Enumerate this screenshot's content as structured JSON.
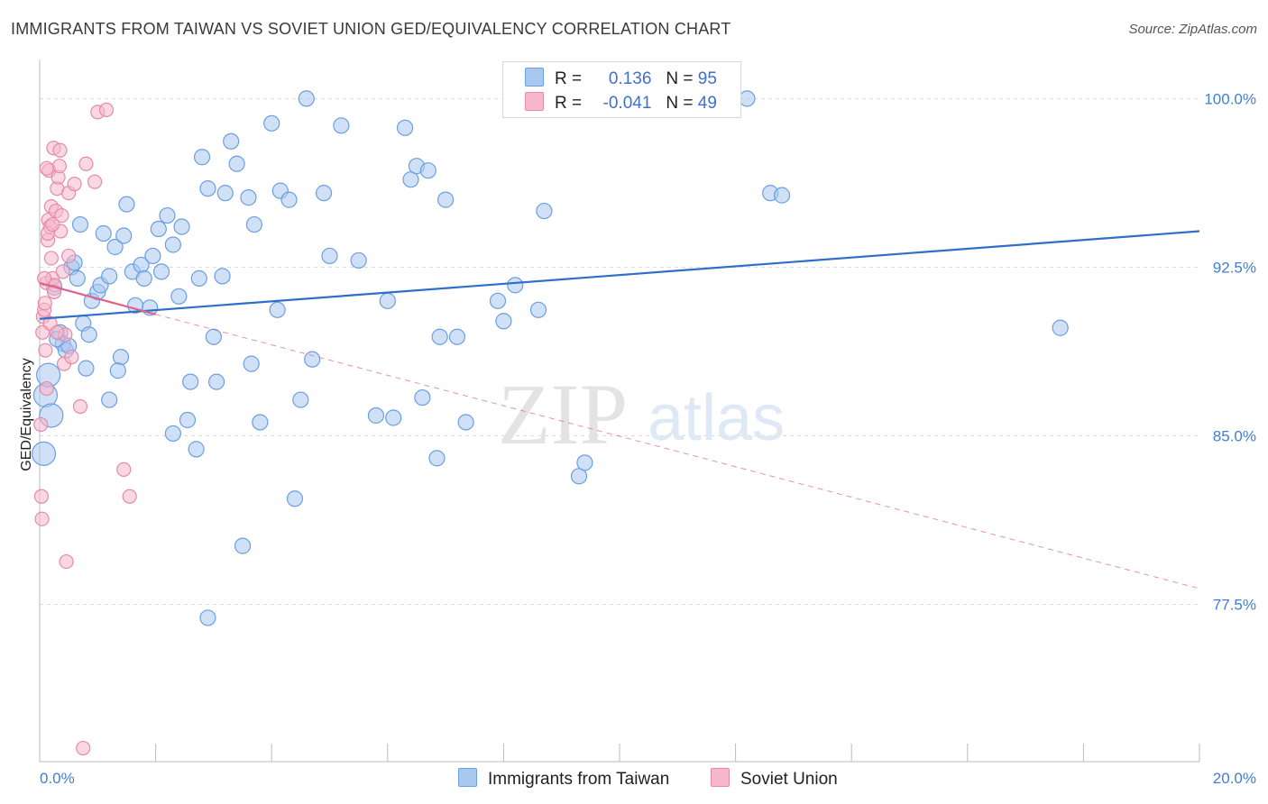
{
  "title": "IMMIGRANTS FROM TAIWAN VS SOVIET UNION GED/EQUIVALENCY CORRELATION CHART",
  "source": "Source: ZipAtlas.com",
  "watermark": {
    "zip": "ZIP",
    "atlas": "atlas"
  },
  "colors": {
    "blue_fill": "#a9c8f0",
    "blue_stroke": "#6b9fe0",
    "blue_line": "#2f6fc9",
    "pink_fill": "#f5b8cc",
    "pink_stroke": "#e58aa8",
    "pink_line": "#e0608e",
    "grid": "#d9d9d9",
    "tick_label": "#3f7fd4"
  },
  "legend": {
    "r_label": "R =",
    "n_label": "N =",
    "rows": [
      {
        "r": "0.136",
        "n": "95"
      },
      {
        "r": "-0.041",
        "n": "49"
      }
    ]
  },
  "bottom_legend": [
    "Immigrants from Taiwan",
    "Soviet Union"
  ],
  "chart_data": {
    "type": "scatter",
    "title": "IMMIGRANTS FROM TAIWAN VS SOVIET UNION GED/EQUIVALENCY CORRELATION CHART",
    "xlabel": "",
    "ylabel": "GED/Equivalency",
    "xlim": [
      0,
      20
    ],
    "ylim": [
      70.5,
      101.5
    ],
    "x_tick_labels": [
      "0.0%",
      "20.0%"
    ],
    "y_ticks": [
      77.5,
      85.0,
      92.5,
      100.0
    ],
    "y_tick_labels": [
      "77.5%",
      "85.0%",
      "92.5%",
      "100.0%"
    ],
    "grid": true,
    "legend_position": "top-center",
    "series": [
      {
        "name": "Immigrants from Taiwan",
        "color": "#a9c8f0",
        "trend": {
          "x": [
            0,
            20
          ],
          "y": [
            90.2,
            94.1
          ],
          "style": "solid"
        },
        "points": [
          [
            0.07,
            84.2
          ],
          [
            0.1,
            86.8
          ],
          [
            0.15,
            87.7
          ],
          [
            0.2,
            85.9
          ],
          [
            0.25,
            91.6
          ],
          [
            0.35,
            89.6
          ],
          [
            0.4,
            89.1
          ],
          [
            0.45,
            88.8
          ],
          [
            0.5,
            89.0
          ],
          [
            0.55,
            92.5
          ],
          [
            0.6,
            92.7
          ],
          [
            0.65,
            92.0
          ],
          [
            0.7,
            94.4
          ],
          [
            0.75,
            90.0
          ],
          [
            0.8,
            88.0
          ],
          [
            0.85,
            89.5
          ],
          [
            0.9,
            91.0
          ],
          [
            1.0,
            91.4
          ],
          [
            1.05,
            91.7
          ],
          [
            1.1,
            94.0
          ],
          [
            1.2,
            92.1
          ],
          [
            1.3,
            93.4
          ],
          [
            1.4,
            88.5
          ],
          [
            1.35,
            87.9
          ],
          [
            1.45,
            93.9
          ],
          [
            1.5,
            95.3
          ],
          [
            1.6,
            92.3
          ],
          [
            1.75,
            92.6
          ],
          [
            1.8,
            92.0
          ],
          [
            1.9,
            90.7
          ],
          [
            1.95,
            93.0
          ],
          [
            2.05,
            94.2
          ],
          [
            2.1,
            92.3
          ],
          [
            2.2,
            94.8
          ],
          [
            2.3,
            93.5
          ],
          [
            2.4,
            91.2
          ],
          [
            2.45,
            94.3
          ],
          [
            2.55,
            85.7
          ],
          [
            2.6,
            87.4
          ],
          [
            2.7,
            84.4
          ],
          [
            2.75,
            92.0
          ],
          [
            2.8,
            97.4
          ],
          [
            2.9,
            96.0
          ],
          [
            3.0,
            89.4
          ],
          [
            3.05,
            87.4
          ],
          [
            3.15,
            92.1
          ],
          [
            3.2,
            95.8
          ],
          [
            3.3,
            98.1
          ],
          [
            3.4,
            97.1
          ],
          [
            3.5,
            80.1
          ],
          [
            3.6,
            95.6
          ],
          [
            3.7,
            94.4
          ],
          [
            3.8,
            85.6
          ],
          [
            4.0,
            98.9
          ],
          [
            4.1,
            90.6
          ],
          [
            4.15,
            95.9
          ],
          [
            4.3,
            95.5
          ],
          [
            4.4,
            82.2
          ],
          [
            4.5,
            86.6
          ],
          [
            4.6,
            100.0
          ],
          [
            4.7,
            88.4
          ],
          [
            4.9,
            95.8
          ],
          [
            5.0,
            93.0
          ],
          [
            5.2,
            98.8
          ],
          [
            5.5,
            92.8
          ],
          [
            5.8,
            85.9
          ],
          [
            6.0,
            91.0
          ],
          [
            6.1,
            85.8
          ],
          [
            6.3,
            98.7
          ],
          [
            6.4,
            96.4
          ],
          [
            6.5,
            97.0
          ],
          [
            6.6,
            86.7
          ],
          [
            6.7,
            96.8
          ],
          [
            6.85,
            84.0
          ],
          [
            6.9,
            89.4
          ],
          [
            7.0,
            95.5
          ],
          [
            7.2,
            89.4
          ],
          [
            7.35,
            85.6
          ],
          [
            7.9,
            91.0
          ],
          [
            8.0,
            90.1
          ],
          [
            8.2,
            91.7
          ],
          [
            8.6,
            90.6
          ],
          [
            8.7,
            95.0
          ],
          [
            9.3,
            83.2
          ],
          [
            9.4,
            83.8
          ],
          [
            12.2,
            100.0
          ],
          [
            12.6,
            95.8
          ],
          [
            12.8,
            95.7
          ],
          [
            17.6,
            89.8
          ],
          [
            1.2,
            86.6
          ],
          [
            1.65,
            90.8
          ],
          [
            2.3,
            85.1
          ],
          [
            2.9,
            76.9
          ],
          [
            3.65,
            88.2
          ],
          [
            0.3,
            89.3
          ]
        ]
      },
      {
        "name": "Soviet Union",
        "color": "#f5b8cc",
        "trend": {
          "x": [
            0,
            2.0
          ],
          "y": [
            91.8,
            90.4
          ],
          "dashed_extension_to": [
            20,
            78.2
          ],
          "style": "solid+dashed"
        },
        "points": [
          [
            0.02,
            85.5
          ],
          [
            0.03,
            82.3
          ],
          [
            0.04,
            81.3
          ],
          [
            0.05,
            89.6
          ],
          [
            0.06,
            90.3
          ],
          [
            0.08,
            90.6
          ],
          [
            0.09,
            90.9
          ],
          [
            0.1,
            88.8
          ],
          [
            0.12,
            91.8
          ],
          [
            0.14,
            93.7
          ],
          [
            0.15,
            94.6
          ],
          [
            0.16,
            96.8
          ],
          [
            0.18,
            94.3
          ],
          [
            0.2,
            95.2
          ],
          [
            0.22,
            92.0
          ],
          [
            0.24,
            97.8
          ],
          [
            0.26,
            91.7
          ],
          [
            0.28,
            95.0
          ],
          [
            0.3,
            96.0
          ],
          [
            0.32,
            96.5
          ],
          [
            0.34,
            97.0
          ],
          [
            0.36,
            94.1
          ],
          [
            0.38,
            94.8
          ],
          [
            0.4,
            92.3
          ],
          [
            0.42,
            88.2
          ],
          [
            0.44,
            89.5
          ],
          [
            0.46,
            79.4
          ],
          [
            0.5,
            95.8
          ],
          [
            0.55,
            88.5
          ],
          [
            0.6,
            96.2
          ],
          [
            0.7,
            86.3
          ],
          [
            0.75,
            71.1
          ],
          [
            0.8,
            97.1
          ],
          [
            0.95,
            96.3
          ],
          [
            1.0,
            99.4
          ],
          [
            1.15,
            99.5
          ],
          [
            1.45,
            83.5
          ],
          [
            1.55,
            82.3
          ],
          [
            0.12,
            87.1
          ],
          [
            0.2,
            92.9
          ],
          [
            0.14,
            94.0
          ],
          [
            0.25,
            91.4
          ],
          [
            0.35,
            97.7
          ],
          [
            0.5,
            93.0
          ],
          [
            0.18,
            90.0
          ],
          [
            0.08,
            92.0
          ],
          [
            0.3,
            89.6
          ],
          [
            0.22,
            94.4
          ],
          [
            0.12,
            96.9
          ]
        ]
      }
    ]
  }
}
